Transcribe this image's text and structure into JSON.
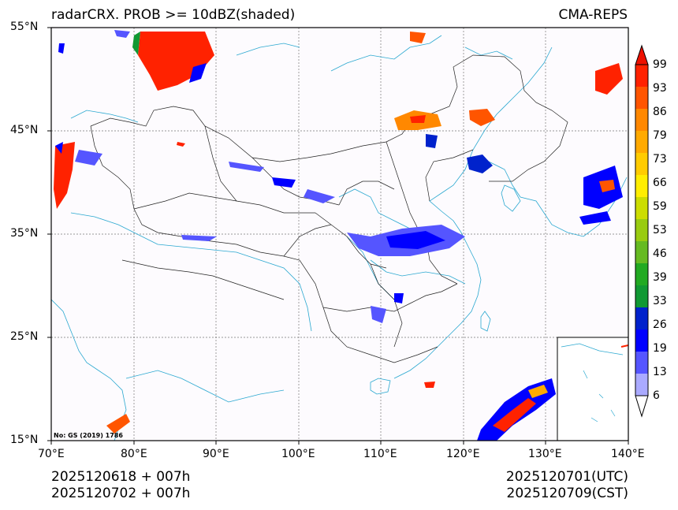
{
  "header": {
    "left_title": "radarCRX. PROB >= 10dBZ(shaded)",
    "right_title": "CMA-REPS"
  },
  "map": {
    "lon_labels": [
      "70°E",
      "80°E",
      "90°E",
      "100°E",
      "110°E",
      "120°E",
      "130°E",
      "140°E"
    ],
    "lat_labels": [
      "55°N",
      "45°N",
      "35°N",
      "25°N",
      "15°N"
    ],
    "approval_note": "No: GS (2019) 1786"
  },
  "colorbar": {
    "labels": [
      "99",
      "93",
      "86",
      "79",
      "73",
      "66",
      "59",
      "53",
      "46",
      "39",
      "33",
      "26",
      "19",
      "13",
      "6"
    ],
    "colors_bottom_to_top": [
      "#aaaaff",
      "#5555ff",
      "#0000ff",
      "#0022cc",
      "#119933",
      "#22aa22",
      "#66bb22",
      "#99cc11",
      "#ccdd00",
      "#ffee00",
      "#ffcc00",
      "#ffaa00",
      "#ff8800",
      "#ff5500",
      "#ff2200"
    ],
    "over_color": "#ee1100",
    "under_color": "#ffffff"
  },
  "footer": {
    "init_utc": "2025120618  +  007h",
    "init_cst": "2025120702  +  007h",
    "valid_utc": "2025120701(UTC)",
    "valid_cst": "2025120709(CST)"
  }
}
